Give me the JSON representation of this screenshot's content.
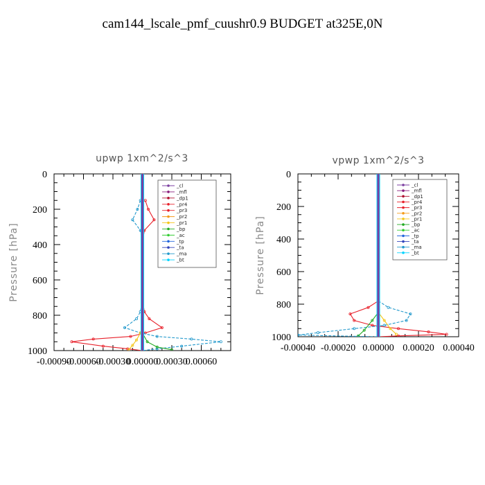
{
  "title": "cam144_lscale_pmf_cuushr0.9  BUDGET at325E,0N",
  "legend_entries": [
    "_cl",
    "_mfl",
    "_dp1",
    "_pr4",
    "_pr3",
    "_pr2",
    "_pr1",
    "_bp",
    "_ac",
    "_tp",
    "_ta",
    "_ma",
    "_bt"
  ],
  "chart_data": [
    {
      "type": "line",
      "title": "upwp   1xm^2/s^3",
      "ylabel": "Pressure [hPa]",
      "xlabel": "",
      "xlim": [
        -0.0009,
        0.0009
      ],
      "ylim": [
        1000,
        0
      ],
      "yticks": [
        0,
        200,
        400,
        600,
        800,
        1000
      ],
      "xtick_labels": [
        "-0.00090",
        "-0.00060",
        "-0.00030",
        "0.00000",
        "0.00030",
        "0.00060"
      ],
      "xtick_values": [
        -0.0009,
        -0.0006,
        -0.0003,
        0.0,
        0.0003,
        0.0006
      ],
      "ytick_labels": [
        "0",
        "200",
        "400",
        "600",
        "800",
        "1000"
      ],
      "series": [
        {
          "name": "_pr4",
          "color": "#e8202a",
          "points": [
            [
              3e-05,
              150
            ],
            [
              6e-05,
              200
            ],
            [
              0.00012,
              260
            ],
            [
              2e-05,
              320
            ],
            [
              0,
              400
            ],
            [
              0,
              700
            ],
            [
              2e-05,
              780
            ],
            [
              7e-05,
              820
            ],
            [
              0.0002,
              870
            ],
            [
              3e-05,
              900
            ],
            [
              -0.00012,
              920
            ],
            [
              -0.0005,
              935
            ],
            [
              -0.00072,
              950
            ],
            [
              -0.0004,
              975
            ],
            [
              -0.00015,
              990
            ],
            [
              0,
              1000
            ]
          ]
        },
        {
          "name": "_ma",
          "color": "#2299cc",
          "points": [
            [
              -2e-05,
              150
            ],
            [
              -5e-05,
              200
            ],
            [
              -0.0001,
              260
            ],
            [
              -2e-05,
              320
            ],
            [
              0,
              400
            ],
            [
              0,
              700
            ],
            [
              -2e-05,
              780
            ],
            [
              -6e-05,
              820
            ],
            [
              -0.00018,
              870
            ],
            [
              -2e-05,
              900
            ],
            [
              0.00015,
              920
            ],
            [
              0.0005,
              935
            ],
            [
              0.0008,
              950
            ],
            [
              0.0004,
              975
            ],
            [
              0.00015,
              990
            ],
            [
              0,
              1000
            ]
          ]
        },
        {
          "name": "_pr1",
          "color": "#f5c518",
          "points": [
            [
              0,
              850
            ],
            [
              -2e-05,
              900
            ],
            [
              -6e-05,
              940
            ],
            [
              -0.0001,
              970
            ],
            [
              -0.00014,
              995
            ]
          ]
        },
        {
          "name": "_bp",
          "color": "#22aa22",
          "points": [
            [
              0,
              900
            ],
            [
              5e-05,
              950
            ],
            [
              0.00015,
              980
            ],
            [
              0.0003,
              995
            ]
          ]
        },
        {
          "name": "_bt",
          "color": "#00d4ff",
          "points": [
            [
              0,
              0
            ],
            [
              0,
              1000
            ]
          ]
        },
        {
          "name": "_cl",
          "color": "#7b3fa0",
          "points": [
            [
              0,
              0
            ],
            [
              0,
              1000
            ]
          ]
        }
      ]
    },
    {
      "type": "line",
      "title": "vpwp   1xm^2/s^3",
      "ylabel": "Pressure [hPa]",
      "xlabel": "",
      "xlim": [
        -0.0004,
        0.0004
      ],
      "ylim": [
        1000,
        0
      ],
      "yticks": [
        0,
        200,
        400,
        600,
        800,
        1000
      ],
      "xtick_labels": [
        "-0.00040",
        "-0.00020",
        "0.00000",
        "0.00020",
        "0.00040"
      ],
      "xtick_values": [
        -0.0004,
        -0.0002,
        0.0,
        0.0002,
        0.0004
      ],
      "ytick_labels": [
        "0",
        "200",
        "400",
        "600",
        "800",
        "1000"
      ],
      "series": [
        {
          "name": "_pr4",
          "color": "#e8202a",
          "points": [
            [
              0,
              780
            ],
            [
              -5e-05,
              820
            ],
            [
              -0.00014,
              860
            ],
            [
              -0.00012,
              900
            ],
            [
              -3e-05,
              930
            ],
            [
              0.0001,
              950
            ],
            [
              0.00025,
              970
            ],
            [
              0.00034,
              985
            ],
            [
              0.0001,
              995
            ],
            [
              0,
              1000
            ]
          ]
        },
        {
          "name": "_ma",
          "color": "#2299cc",
          "points": [
            [
              0,
              780
            ],
            [
              5e-05,
              820
            ],
            [
              0.00016,
              860
            ],
            [
              0.00014,
              900
            ],
            [
              3e-05,
              930
            ],
            [
              -0.00012,
              950
            ],
            [
              -0.0003,
              975
            ],
            [
              -0.0004,
              990
            ],
            [
              -0.0001,
              998
            ],
            [
              0,
              1000
            ]
          ]
        },
        {
          "name": "_pr1",
          "color": "#f5c518",
          "points": [
            [
              0,
              850
            ],
            [
              3e-05,
              900
            ],
            [
              6e-05,
              950
            ],
            [
              9e-05,
              985
            ]
          ]
        },
        {
          "name": "_bp",
          "color": "#22aa22",
          "points": [
            [
              0,
              850
            ],
            [
              -3e-05,
              900
            ],
            [
              -7e-05,
              960
            ],
            [
              -0.0001,
              995
            ]
          ]
        },
        {
          "name": "_bt",
          "color": "#00d4ff",
          "points": [
            [
              0,
              0
            ],
            [
              0,
              1000
            ]
          ]
        },
        {
          "name": "_cl",
          "color": "#7b3fa0",
          "points": [
            [
              0,
              0
            ],
            [
              0,
              1000
            ]
          ]
        }
      ]
    }
  ]
}
